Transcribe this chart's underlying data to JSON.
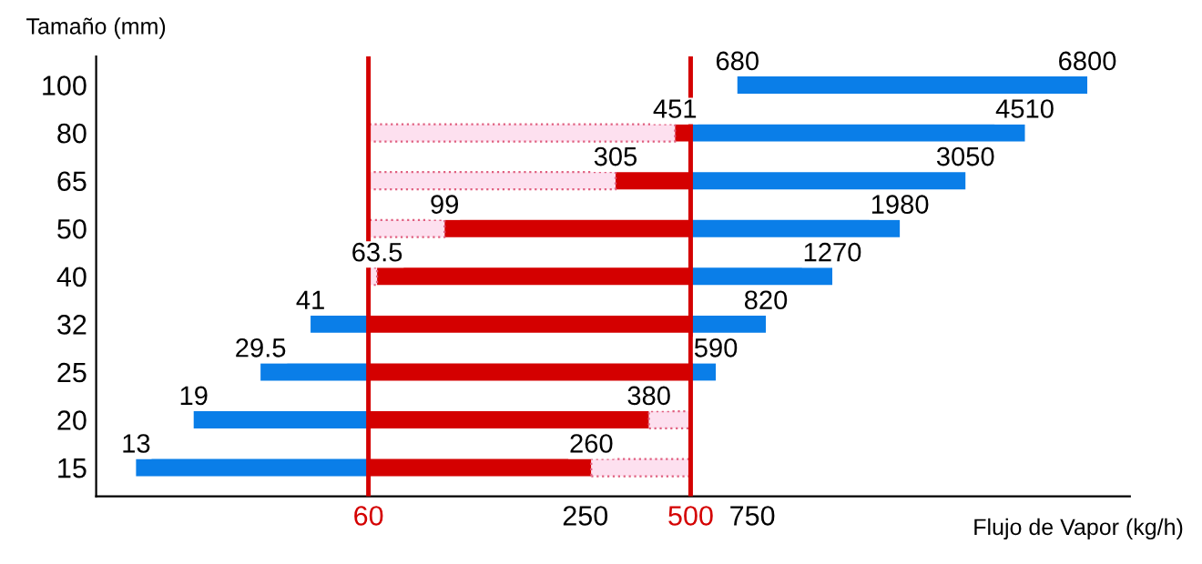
{
  "chart_data": {
    "type": "bar",
    "orientation": "horizontal",
    "log": "x",
    "ylabel": "Tamaño (mm)",
    "xlabel": "Flujo de Vapor (kg/h)",
    "categories": [
      "100",
      "80",
      "65",
      "50",
      "40",
      "32",
      "25",
      "20",
      "15"
    ],
    "series": [
      {
        "color": "#0a7ee8",
        "base": [
          null,
          null,
          null,
          null,
          null,
          41,
          29.5,
          19,
          13
        ],
        "values": [
          null,
          null,
          null,
          null,
          null,
          19,
          30.5,
          41,
          47
        ]
      },
      {
        "color": "#0a7ee8",
        "base": [
          680,
          500,
          500,
          500,
          500,
          500,
          500,
          null,
          null
        ],
        "values": [
          6120,
          4010,
          2550,
          1480,
          770,
          320,
          90,
          null,
          null
        ]
      },
      {
        "color": "#d40000",
        "base": [
          null,
          451,
          305,
          99,
          63.5,
          60,
          60,
          60,
          60
        ],
        "values": [
          null,
          49,
          195,
          401,
          436.5,
          440,
          440,
          320,
          200
        ]
      },
      {
        "color": "#fde0ef",
        "line_style": "dotted",
        "base": [
          null,
          60,
          60,
          60,
          60,
          null,
          null,
          380,
          260
        ],
        "values": [
          null,
          391,
          245,
          39,
          3.5,
          null,
          null,
          120,
          240
        ]
      }
    ],
    "xlim": [
      10,
      9000
    ],
    "xticks": [
      60,
      250,
      500,
      750
    ],
    "ref_lines": [
      {
        "axis": "x",
        "value": 60,
        "color": "#d40000"
      },
      {
        "axis": "x",
        "value": 500,
        "color": "#d40000"
      }
    ],
    "grid": false,
    "annotations": [
      {
        "text": "680",
        "x": 680,
        "y": "100"
      },
      {
        "text": "6800",
        "x": 6800,
        "y": "100"
      },
      {
        "text": "451",
        "x": 451,
        "y": "80"
      },
      {
        "text": "4510",
        "x": 4510,
        "y": "80"
      },
      {
        "text": "305",
        "x": 305,
        "y": "65"
      },
      {
        "text": "3050",
        "x": 3050,
        "y": "65"
      },
      {
        "text": "99",
        "x": 99,
        "y": "50"
      },
      {
        "text": "1980",
        "x": 1980,
        "y": "50"
      },
      {
        "text": "63.5",
        "x": 63.5,
        "y": "40"
      },
      {
        "text": "1270",
        "x": 1270,
        "y": "40"
      },
      {
        "text": "41",
        "x": 41,
        "y": "32"
      },
      {
        "text": "820",
        "x": 820,
        "y": "32"
      },
      {
        "text": "29.5",
        "x": 29.5,
        "y": "25"
      },
      {
        "text": "590",
        "x": 590,
        "y": "25"
      },
      {
        "text": "19",
        "x": 19,
        "y": "20"
      },
      {
        "text": "380",
        "x": 380,
        "y": "20"
      },
      {
        "text": "13",
        "x": 13,
        "y": "15"
      },
      {
        "text": "260",
        "x": 260,
        "y": "15"
      }
    ]
  }
}
